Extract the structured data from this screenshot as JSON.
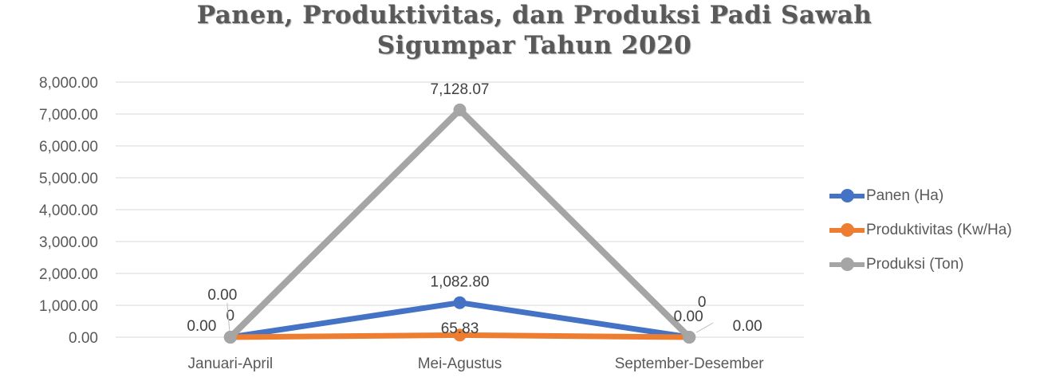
{
  "chart_data": {
    "type": "line",
    "title_lines": [
      "Panen, Produktivitas, dan Produksi Padi Sawah",
      "Sigumpar Tahun 2020"
    ],
    "categories": [
      "Januari-April",
      "Mei-Agustus",
      "September-Desember"
    ],
    "ylim": [
      0,
      8000
    ],
    "yticks": [
      "0.00",
      "1,000.00",
      "2,000.00",
      "3,000.00",
      "4,000.00",
      "5,000.00",
      "6,000.00",
      "7,000.00",
      "8,000.00"
    ],
    "grid": true,
    "legend_position": "right",
    "series": [
      {
        "name": "Panen (Ha)",
        "color": "#4472C4",
        "values": [
          0,
          1082.8,
          0
        ],
        "labels": [
          "0.00",
          "1,082.80",
          "0.00"
        ]
      },
      {
        "name": "Produktivitas (Kw/Ha)",
        "color": "#ED7D31",
        "values": [
          0,
          65.83,
          0
        ],
        "labels": [
          "0",
          "65.83",
          "0"
        ]
      },
      {
        "name": "Produksi (Ton)",
        "color": "#A5A5A5",
        "values": [
          0,
          7128.07,
          0
        ],
        "labels": [
          "0.00",
          "7,128.07",
          "0.00"
        ]
      }
    ]
  }
}
